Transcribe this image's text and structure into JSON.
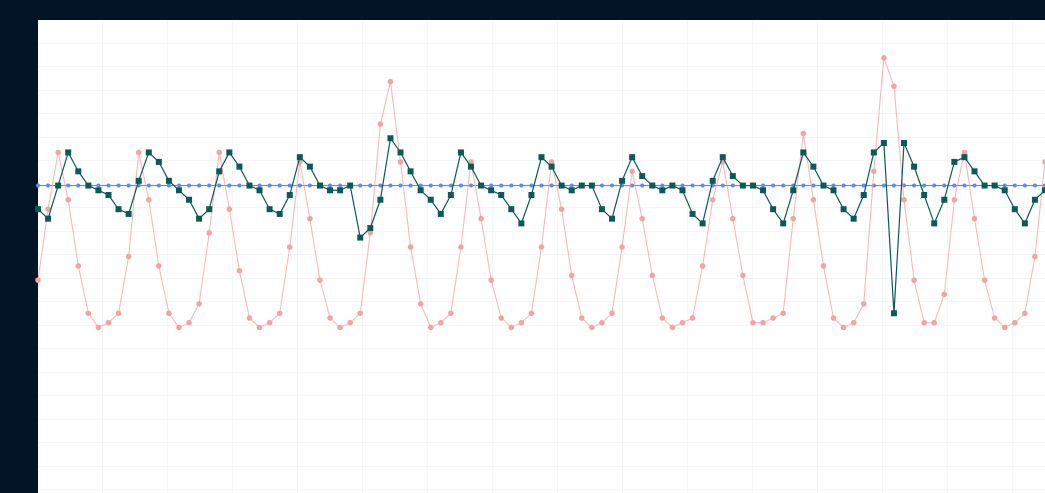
{
  "chart_data": {
    "type": "line",
    "ylim": [
      0,
      100
    ],
    "series": [
      {
        "color": "#f4a3a3",
        "marker": "circle",
        "values": [
          45,
          60,
          72,
          62,
          48,
          38,
          35,
          36,
          38,
          50,
          72,
          62,
          48,
          38,
          35,
          36,
          40,
          55,
          72,
          60,
          47,
          37,
          35,
          36,
          38,
          52,
          70,
          58,
          45,
          37,
          35,
          36,
          38,
          55,
          78,
          87,
          70,
          52,
          40,
          35,
          36,
          38,
          52,
          70,
          58,
          45,
          37,
          35,
          36,
          38,
          52,
          70,
          60,
          46,
          37,
          35,
          36,
          38,
          52,
          68,
          58,
          46,
          37,
          35,
          36,
          37,
          48,
          62,
          70,
          58,
          46,
          36,
          36,
          37,
          38,
          58,
          76,
          62,
          48,
          37,
          35,
          36,
          40,
          68,
          92,
          86,
          62,
          45,
          36,
          36,
          42,
          62,
          72,
          58,
          45,
          37,
          35,
          36,
          38,
          50,
          70
        ]
      },
      {
        "color": "#0b5a55",
        "marker": "square",
        "values": [
          60,
          58,
          65,
          72,
          68,
          65,
          64,
          63,
          60,
          59,
          66,
          72,
          70,
          66,
          64,
          62,
          58,
          60,
          68,
          72,
          69,
          65,
          64,
          60,
          59,
          63,
          71,
          69,
          65,
          64,
          64,
          65,
          54,
          56,
          62,
          75,
          72,
          68,
          64,
          62,
          59,
          63,
          72,
          69,
          65,
          64,
          63,
          60,
          57,
          63,
          71,
          69,
          65,
          64,
          65,
          65,
          60,
          58,
          66,
          71,
          67,
          65,
          64,
          65,
          64,
          59,
          57,
          66,
          71,
          67,
          65,
          65,
          64,
          60,
          57,
          64,
          72,
          69,
          65,
          64,
          60,
          58,
          63,
          72,
          74,
          38,
          74,
          69,
          63,
          57,
          62,
          70,
          71,
          68,
          65,
          65,
          64,
          60,
          57,
          62,
          64
        ]
      },
      {
        "color": "#5b8def",
        "marker": "dot",
        "values": [
          65,
          65,
          65,
          65,
          65,
          65,
          65,
          65,
          65,
          65,
          65,
          65,
          65,
          65,
          65,
          65,
          65,
          65,
          65,
          65,
          65,
          65,
          65,
          65,
          65,
          65,
          65,
          65,
          65,
          65,
          65,
          65,
          65,
          65,
          65,
          65,
          65,
          65,
          65,
          65,
          65,
          65,
          65,
          65,
          65,
          65,
          65,
          65,
          65,
          65,
          65,
          65,
          65,
          65,
          65,
          65,
          65,
          65,
          65,
          65,
          65,
          65,
          65,
          65,
          65,
          65,
          65,
          65,
          65,
          65,
          65,
          65,
          65,
          65,
          65,
          65,
          65,
          65,
          65,
          65,
          65,
          65,
          65,
          65,
          65,
          65,
          65,
          65,
          65,
          65,
          65,
          65,
          65,
          65,
          65,
          65,
          65,
          65,
          65,
          65,
          65
        ]
      }
    ]
  }
}
